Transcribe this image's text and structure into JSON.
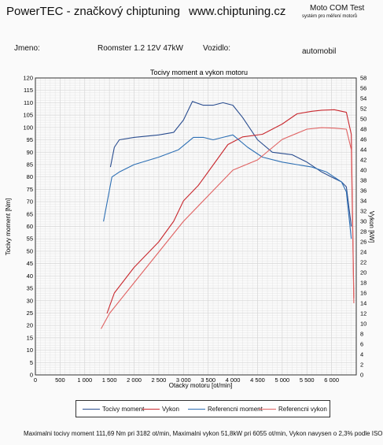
{
  "header": {
    "brand": "PowerTEC - značkový chiptuning",
    "website": "www.chiptuning.cz",
    "tester": "Moto COM Test",
    "tester_sub": "systém pro měření motorů"
  },
  "info": {
    "name_label": "Jmeno:",
    "vehicle": "Roomster 1.2 12V 47kW",
    "driver_label": "Vozidlo:",
    "driver_value": "automobil"
  },
  "footer": {
    "text": "Maximalni tocivy moment 111,69 Nm pri 3182 ot/min,  Maximalni vykon 51,8kW pri 6055 ot/min,  Vykon navysen o 2,3% podle ISO"
  },
  "colors": {
    "torque": "#2a4d8f",
    "power": "#c8282e",
    "ref_torque": "#2d6fb4",
    "ref_power": "#e06262",
    "grid": "#d6d6d6"
  },
  "chart_data": {
    "type": "line",
    "title": "Tocivy moment a vykon motoru",
    "xlabel": "Otacky motoru [ot/min]",
    "ylabel": "Tocivy moment [Nm]",
    "y2label": "Vykon [kW]",
    "xlim": [
      0,
      6500
    ],
    "ylim": [
      0,
      120
    ],
    "y2lim": [
      0,
      58
    ],
    "xticks": [
      0,
      500,
      1000,
      1500,
      2000,
      2500,
      3000,
      3500,
      4000,
      4500,
      5000,
      5500,
      6000
    ],
    "xtick_labels": [
      "0",
      "500",
      "1 000",
      "1 500",
      "2 000",
      "2 500",
      "3 000",
      "3 500",
      "4 000",
      "4 500",
      "5 000",
      "5 500",
      "6 000"
    ],
    "yticks": [
      0,
      5,
      10,
      15,
      20,
      25,
      30,
      35,
      40,
      45,
      50,
      55,
      60,
      65,
      70,
      75,
      80,
      85,
      90,
      95,
      100,
      105,
      110,
      115,
      120
    ],
    "y2ticks": [
      0,
      2,
      4,
      6,
      8,
      10,
      12,
      14,
      16,
      18,
      20,
      22,
      24,
      26,
      28,
      30,
      32,
      34,
      36,
      38,
      40,
      42,
      44,
      46,
      48,
      50,
      52,
      54,
      56,
      58
    ],
    "grid": true,
    "legend_position": "bottom",
    "series": [
      {
        "name": "Tocivy moment",
        "axis": "left",
        "color_key": "torque",
        "x": [
          1520,
          1600,
          1700,
          2000,
          2500,
          2800,
          3000,
          3182,
          3400,
          3600,
          3800,
          4000,
          4200,
          4500,
          4800,
          5200,
          5500,
          5800,
          6000,
          6200,
          6300,
          6400
        ],
        "y": [
          84,
          92,
          95,
          96,
          97,
          98,
          103,
          110.5,
          109,
          109,
          110,
          109,
          104,
          95,
          90,
          89,
          86,
          82,
          80,
          78,
          76,
          60
        ]
      },
      {
        "name": "Vykon",
        "axis": "right",
        "color_key": "power",
        "x": [
          1450,
          1600,
          2000,
          2500,
          2800,
          3000,
          3300,
          3600,
          3900,
          4200,
          4600,
          5000,
          5300,
          5600,
          5800,
          6055,
          6300,
          6400,
          6450
        ],
        "y": [
          12,
          16,
          21,
          26,
          30,
          34,
          37,
          41,
          45,
          46.5,
          47,
          49,
          51,
          51.5,
          51.7,
          51.8,
          51.3,
          47,
          15
        ]
      },
      {
        "name": "Referencni moment",
        "axis": "left",
        "color_key": "ref_torque",
        "x": [
          1380,
          1550,
          1700,
          2000,
          2500,
          2900,
          3200,
          3400,
          3600,
          3800,
          4000,
          4300,
          4600,
          5000,
          5300,
          5600,
          5900,
          6200,
          6300,
          6400
        ],
        "y": [
          62,
          80,
          82,
          85,
          88,
          91,
          96,
          96,
          95,
          96,
          97,
          92,
          88,
          86,
          85,
          84,
          82,
          78,
          74,
          55
        ]
      },
      {
        "name": "Referencni vykon",
        "axis": "right",
        "color_key": "ref_power",
        "x": [
          1330,
          1500,
          2000,
          2500,
          3000,
          3500,
          4000,
          4500,
          5000,
          5500,
          5800,
          6055,
          6300,
          6400,
          6450
        ],
        "y": [
          9,
          12,
          18,
          24,
          30,
          35,
          40,
          42,
          46,
          48,
          48.3,
          48.2,
          48,
          44,
          14
        ]
      }
    ]
  }
}
